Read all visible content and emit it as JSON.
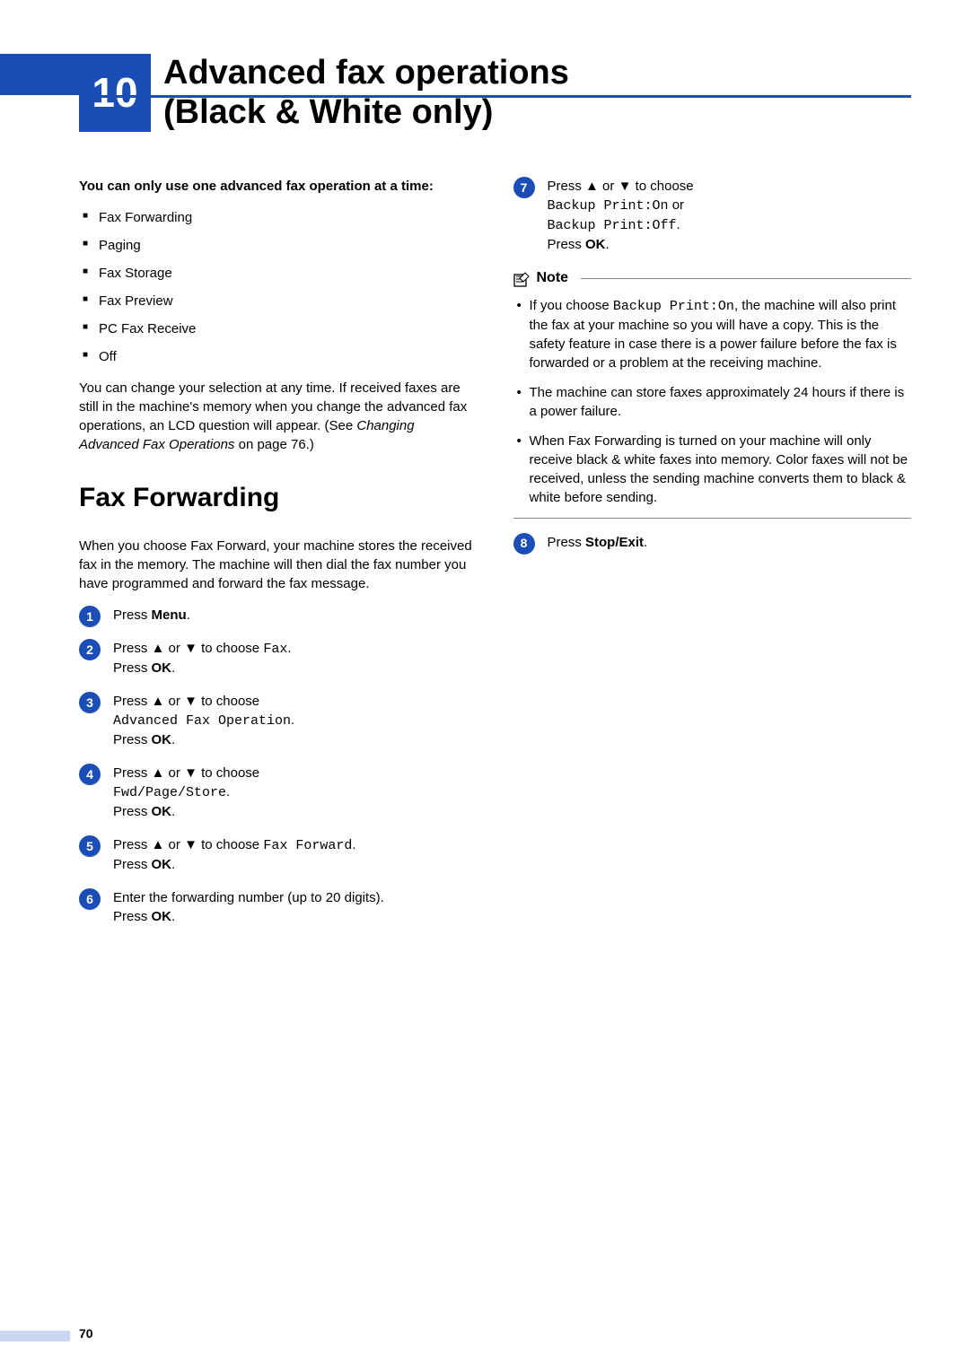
{
  "chapter": {
    "number": "10",
    "title_line1": "Advanced fax operations",
    "title_line2": "(Black & White only)"
  },
  "accent_color": "#1a4db6",
  "page_number": "70",
  "intro": {
    "bold_lead": "You can only use one advanced fax operation at a time:",
    "items": [
      "Fax Forwarding",
      "Paging",
      "Fax Storage",
      "Fax Preview",
      "PC Fax Receive",
      "Off"
    ],
    "after_para_1": "You can change your selection at any time. If received faxes are still in the machine's memory when you change the advanced fax operations, an LCD question will appear. (See ",
    "after_para_ref": "Changing Advanced Fax Operations",
    "after_para_2": " on page 76.)"
  },
  "section": {
    "title": "Fax Forwarding",
    "lead": "When you choose Fax Forward, your machine stores the received fax in the memory. The machine will then dial the fax number you have programmed and forward the fax message."
  },
  "steps_left": [
    {
      "n": "1",
      "body": [
        {
          "t": "Press "
        },
        {
          "t": "Menu",
          "b": true
        },
        {
          "t": "."
        }
      ]
    },
    {
      "n": "2",
      "body": [
        {
          "t": "Press "
        },
        {
          "t": "▲",
          "a": true
        },
        {
          "t": " or "
        },
        {
          "t": "▼",
          "a": true
        },
        {
          "t": " to choose "
        },
        {
          "t": "Fax",
          "m": true
        },
        {
          "t": ".",
          "br": true
        },
        {
          "t": "Press "
        },
        {
          "t": "OK",
          "b": true
        },
        {
          "t": "."
        }
      ]
    },
    {
      "n": "3",
      "body": [
        {
          "t": "Press "
        },
        {
          "t": "▲",
          "a": true
        },
        {
          "t": " or "
        },
        {
          "t": "▼",
          "a": true
        },
        {
          "t": " to choose",
          "br": true
        },
        {
          "t": "Advanced Fax Operation",
          "m": true
        },
        {
          "t": ".",
          "br": true
        },
        {
          "t": "Press "
        },
        {
          "t": "OK",
          "b": true
        },
        {
          "t": "."
        }
      ]
    },
    {
      "n": "4",
      "body": [
        {
          "t": "Press "
        },
        {
          "t": "▲",
          "a": true
        },
        {
          "t": " or "
        },
        {
          "t": "▼",
          "a": true
        },
        {
          "t": " to choose",
          "br": true
        },
        {
          "t": "Fwd/Page/Store",
          "m": true
        },
        {
          "t": ".",
          "br": true
        },
        {
          "t": "Press "
        },
        {
          "t": "OK",
          "b": true
        },
        {
          "t": "."
        }
      ]
    },
    {
      "n": "5",
      "body": [
        {
          "t": "Press "
        },
        {
          "t": "▲",
          "a": true
        },
        {
          "t": " or "
        },
        {
          "t": "▼",
          "a": true
        },
        {
          "t": " to choose "
        },
        {
          "t": "Fax Forward",
          "m": true
        },
        {
          "t": ".",
          "br": true
        },
        {
          "t": "Press "
        },
        {
          "t": "OK",
          "b": true
        },
        {
          "t": "."
        }
      ]
    },
    {
      "n": "6",
      "body": [
        {
          "t": "Enter the forwarding number (up to 20 digits).",
          "br": true
        },
        {
          "t": "Press "
        },
        {
          "t": "OK",
          "b": true
        },
        {
          "t": "."
        }
      ]
    }
  ],
  "steps_right_top": [
    {
      "n": "7",
      "body": [
        {
          "t": "Press "
        },
        {
          "t": "▲",
          "a": true
        },
        {
          "t": " or "
        },
        {
          "t": "▼",
          "a": true
        },
        {
          "t": " to choose",
          "br": true
        },
        {
          "t": "Backup Print:On",
          "m": true
        },
        {
          "t": " or",
          "br": true
        },
        {
          "t": "Backup Print:Off",
          "m": true
        },
        {
          "t": ".",
          "br": true
        },
        {
          "t": "Press "
        },
        {
          "t": "OK",
          "b": true
        },
        {
          "t": "."
        }
      ]
    }
  ],
  "note": {
    "title": "Note",
    "items": [
      [
        {
          "t": "If you choose "
        },
        {
          "t": "Backup Print:On",
          "m": true
        },
        {
          "t": ", the machine will also print the fax at your machine so you will have a copy. This is the safety feature in case there is a power failure before the fax is forwarded or a problem at the receiving machine."
        }
      ],
      [
        {
          "t": "The machine can store faxes approximately 24 hours if there is a power failure."
        }
      ],
      [
        {
          "t": "When Fax Forwarding is turned on your machine will only receive black & white faxes into memory. Color faxes will not be received, unless the sending machine converts them to black & white before sending."
        }
      ]
    ]
  },
  "steps_right_bottom": [
    {
      "n": "8",
      "body": [
        {
          "t": "Press "
        },
        {
          "t": "Stop/Exit",
          "b": true
        },
        {
          "t": "."
        }
      ]
    }
  ]
}
